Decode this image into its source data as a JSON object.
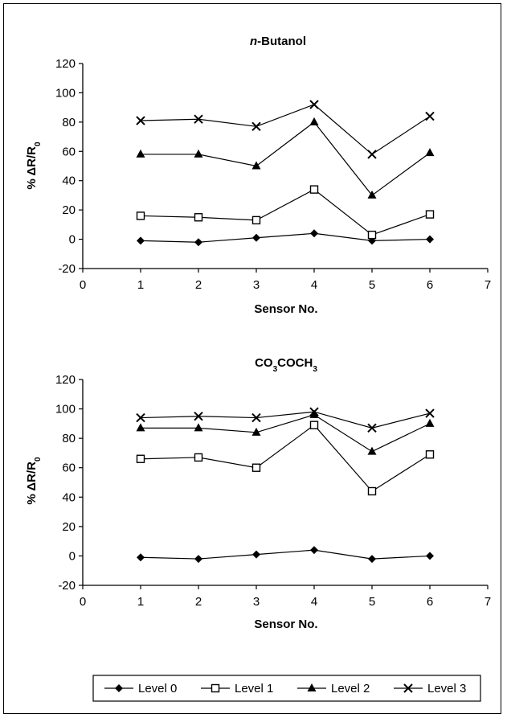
{
  "chart_data": [
    {
      "type": "line",
      "title_italic": "n",
      "title": "-Butanol",
      "xlabel": "Sensor No.",
      "ylabel_main": "% ΔR/R",
      "ylabel_sub": "0",
      "xlim": [
        0,
        7
      ],
      "ylim": [
        -20,
        120
      ],
      "x_ticks": [
        "0",
        "1",
        "2",
        "3",
        "4",
        "5",
        "6",
        "7"
      ],
      "y_ticks": [
        "-20",
        "0",
        "20",
        "40",
        "60",
        "80",
        "100",
        "120"
      ],
      "grid": false,
      "x": [
        1,
        2,
        3,
        4,
        5,
        6
      ],
      "series": [
        {
          "name": "Level 0",
          "marker": "diamond",
          "values": [
            -1,
            -2,
            1,
            4,
            -1,
            0
          ]
        },
        {
          "name": "Level 1",
          "marker": "square",
          "values": [
            16,
            15,
            13,
            34,
            3,
            17
          ]
        },
        {
          "name": "Level 2",
          "marker": "triangle",
          "values": [
            58,
            58,
            50,
            80,
            30,
            59
          ]
        },
        {
          "name": "Level 3",
          "marker": "x",
          "values": [
            81,
            82,
            77,
            92,
            58,
            84
          ]
        }
      ]
    },
    {
      "type": "line",
      "title_parts": [
        "CO",
        "3",
        "COCH",
        "3"
      ],
      "xlabel": "Sensor No.",
      "ylabel_main": "% ΔR/R",
      "ylabel_sub": "0",
      "xlim": [
        0,
        7
      ],
      "ylim": [
        -20,
        120
      ],
      "x_ticks": [
        "0",
        "1",
        "2",
        "3",
        "4",
        "5",
        "6",
        "7"
      ],
      "y_ticks": [
        "-20",
        "0",
        "20",
        "40",
        "60",
        "80",
        "100",
        "120"
      ],
      "grid": false,
      "x": [
        1,
        2,
        3,
        4,
        5,
        6
      ],
      "series": [
        {
          "name": "Level 0",
          "marker": "diamond",
          "values": [
            -1,
            -2,
            1,
            4,
            -2,
            0
          ]
        },
        {
          "name": "Level 1",
          "marker": "square",
          "values": [
            66,
            67,
            60,
            89,
            44,
            69
          ]
        },
        {
          "name": "Level 2",
          "marker": "triangle",
          "values": [
            87,
            87,
            84,
            96,
            71,
            90
          ]
        },
        {
          "name": "Level 3",
          "marker": "x",
          "values": [
            94,
            95,
            94,
            98,
            87,
            97
          ]
        }
      ]
    }
  ],
  "legend": {
    "placement": "bottom",
    "items": [
      {
        "label": "Level 0",
        "marker": "diamond"
      },
      {
        "label": "Level 1",
        "marker": "square"
      },
      {
        "label": "Level 2",
        "marker": "triangle"
      },
      {
        "label": "Level 3",
        "marker": "x"
      }
    ]
  }
}
